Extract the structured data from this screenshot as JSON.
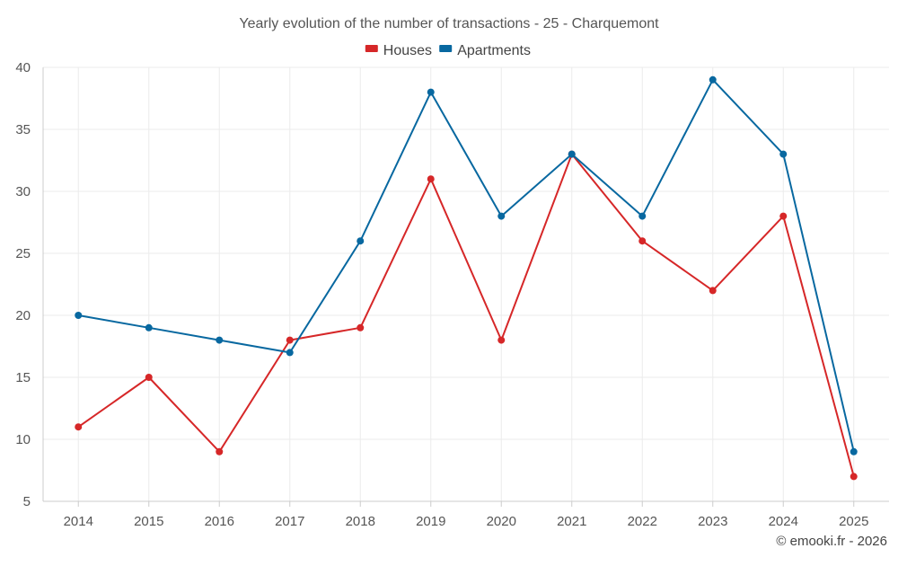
{
  "chart_data": {
    "type": "line",
    "title": "Yearly evolution of the number of transactions - 25 - Charquemont",
    "xlabel": "",
    "ylabel": "",
    "categories": [
      "2014",
      "2015",
      "2016",
      "2017",
      "2018",
      "2019",
      "2020",
      "2021",
      "2022",
      "2023",
      "2024",
      "2025"
    ],
    "ylim": [
      5,
      40
    ],
    "yticks": [
      5,
      10,
      15,
      20,
      25,
      30,
      35,
      40
    ],
    "grid": true,
    "legend_position": "top-center",
    "series": [
      {
        "name": "Houses",
        "color": "#d62728",
        "values": [
          11,
          15,
          9,
          18,
          19,
          31,
          18,
          33,
          26,
          22,
          28,
          7
        ]
      },
      {
        "name": "Apartments",
        "color": "#0868a0",
        "values": [
          20,
          19,
          18,
          17,
          26,
          38,
          28,
          33,
          28,
          39,
          33,
          9
        ]
      }
    ]
  },
  "footer": {
    "copyright": "© emooki.fr - 2026"
  }
}
